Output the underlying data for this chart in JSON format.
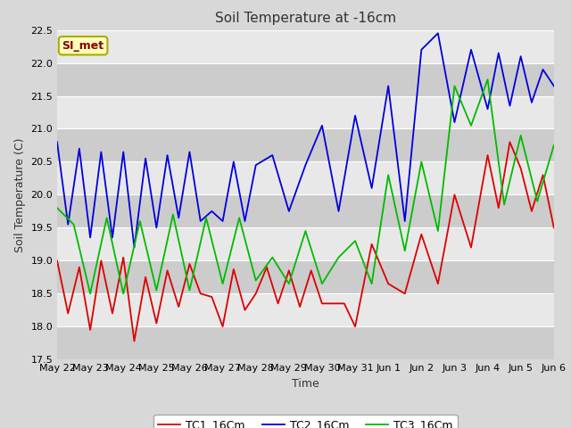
{
  "title": "Soil Temperature at -16cm",
  "xlabel": "Time",
  "ylabel": "Soil Temperature (C)",
  "ylim": [
    17.5,
    22.5
  ],
  "background_color": "#d8d8d8",
  "plot_bg_color": "#d8d8d8",
  "grid_color": "#ffffff",
  "annotation_text": "SI_met",
  "annotation_bg": "#ffffbb",
  "annotation_border": "#aaaa00",
  "annotation_text_color": "#880000",
  "legend_labels": [
    "TC1_16Cm",
    "TC2_16Cm",
    "TC3_16Cm"
  ],
  "colors": [
    "#dd0000",
    "#0000dd",
    "#00bb00"
  ],
  "x_tick_labels": [
    "May 22",
    "May 23",
    "May 24",
    "May 25",
    "May 26",
    "May 27",
    "May 28",
    "May 29",
    "May 30",
    "May 31",
    "Jun 1",
    "Jun 2",
    "Jun 3",
    "Jun 4",
    "Jun 5",
    "Jun 6"
  ],
  "yticks": [
    17.5,
    18.0,
    18.5,
    19.0,
    19.5,
    20.0,
    20.5,
    21.0,
    21.5,
    22.0,
    22.5
  ],
  "tc1_x": [
    0,
    0.33,
    0.67,
    1.0,
    1.33,
    1.67,
    2.0,
    2.33,
    2.67,
    3.0,
    3.33,
    3.67,
    4.0,
    4.33,
    4.67,
    5.0,
    5.33,
    5.67,
    6.0,
    6.33,
    6.67,
    7.0,
    7.33,
    7.67,
    8.0,
    8.33,
    8.67,
    9.0,
    9.5,
    10.0,
    10.5,
    11.0,
    11.5,
    12.0,
    12.5,
    13.0,
    13.33,
    13.67,
    14.0,
    14.33,
    14.67,
    15.0
  ],
  "tc1_y": [
    19.0,
    18.2,
    18.9,
    17.95,
    19.0,
    18.2,
    19.05,
    17.78,
    18.75,
    18.05,
    18.85,
    18.3,
    18.95,
    18.5,
    18.45,
    18.0,
    18.87,
    18.25,
    18.5,
    18.9,
    18.35,
    18.85,
    18.3,
    18.85,
    18.35,
    18.35,
    18.35,
    18.0,
    19.25,
    18.65,
    18.5,
    19.4,
    18.65,
    20.0,
    19.2,
    20.6,
    19.8,
    20.8,
    20.4,
    19.75,
    20.3,
    19.5
  ],
  "tc2_x": [
    0,
    0.33,
    0.67,
    1.0,
    1.33,
    1.67,
    2.0,
    2.33,
    2.67,
    3.0,
    3.33,
    3.67,
    4.0,
    4.33,
    4.67,
    5.0,
    5.33,
    5.67,
    6.0,
    6.5,
    7.0,
    7.5,
    8.0,
    8.5,
    9.0,
    9.5,
    10.0,
    10.5,
    11.0,
    11.5,
    12.0,
    12.5,
    13.0,
    13.33,
    13.67,
    14.0,
    14.33,
    14.67,
    15.0
  ],
  "tc2_y": [
    20.8,
    19.55,
    20.7,
    19.35,
    20.65,
    19.35,
    20.65,
    19.2,
    20.55,
    19.5,
    20.6,
    19.65,
    20.65,
    19.6,
    19.75,
    19.6,
    20.5,
    19.6,
    20.45,
    20.6,
    19.75,
    20.45,
    21.05,
    19.75,
    21.2,
    20.1,
    21.65,
    19.6,
    22.2,
    22.45,
    21.1,
    22.2,
    21.3,
    22.15,
    21.35,
    22.1,
    21.4,
    21.9,
    21.65
  ],
  "tc3_x": [
    0,
    0.5,
    1.0,
    1.5,
    2.0,
    2.5,
    3.0,
    3.5,
    4.0,
    4.5,
    5.0,
    5.5,
    6.0,
    6.5,
    7.0,
    7.5,
    8.0,
    8.5,
    9.0,
    9.5,
    10.0,
    10.5,
    11.0,
    11.5,
    12.0,
    12.5,
    13.0,
    13.5,
    14.0,
    14.5,
    15.0
  ],
  "tc3_y": [
    19.8,
    19.55,
    18.5,
    19.65,
    18.5,
    19.6,
    18.55,
    19.7,
    18.55,
    19.65,
    18.65,
    19.65,
    18.7,
    19.05,
    18.65,
    19.45,
    18.65,
    19.05,
    19.3,
    18.65,
    20.3,
    19.15,
    20.5,
    19.45,
    21.65,
    21.05,
    21.75,
    19.85,
    20.9,
    19.9,
    20.75
  ]
}
